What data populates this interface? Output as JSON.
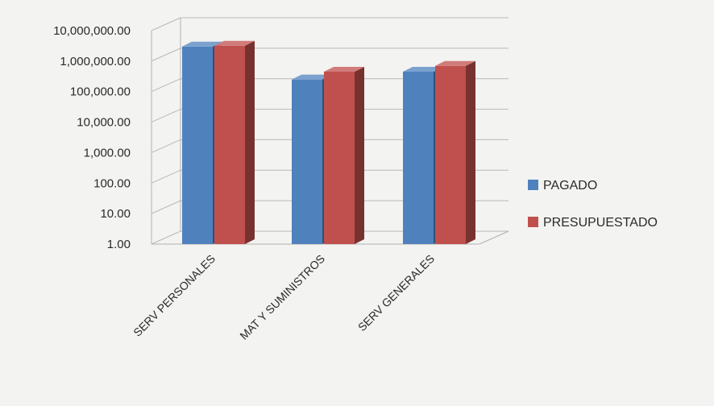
{
  "chart_data": {
    "type": "bar",
    "style": "3d-clustered-column",
    "yscale": "log",
    "ylim": [
      1,
      10000000
    ],
    "grid": true,
    "legend_position": "right",
    "yticks": [
      "10,000,000.00",
      "1,000,000.00",
      "100,000.00",
      "10,000.00",
      "1,000.00",
      "100.00",
      "10.00",
      "1.00"
    ],
    "categories": [
      "SERV PERSONALES",
      "MAT Y SUMINISTROS",
      "SERV GENERALES"
    ],
    "series": [
      {
        "name": "PAGADO",
        "color": "#4f81bd",
        "values": [
          3000000,
          250000,
          450000
        ]
      },
      {
        "name": "PRESUPUESTADO",
        "color": "#c0504d",
        "values": [
          3200000,
          450000,
          700000
        ]
      }
    ]
  }
}
